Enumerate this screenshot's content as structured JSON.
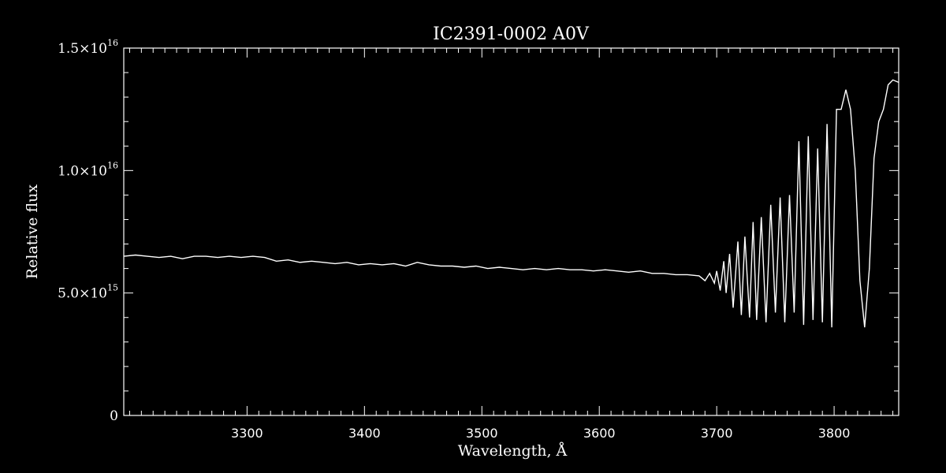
{
  "chart_data": {
    "type": "line",
    "title": "IC2391-0002  A0V",
    "xlabel": "Wavelength, Å",
    "ylabel": "Relative flux",
    "xlim": [
      3195,
      3855
    ],
    "ylim": [
      0,
      1.5e+16
    ],
    "x_major_ticks": [
      3300,
      3400,
      3500,
      3600,
      3700,
      3800
    ],
    "x_tick_labels": [
      "3300",
      "3400",
      "3500",
      "3600",
      "3700",
      "3800"
    ],
    "x_minor_step": 10,
    "y_major_ticks": [
      0,
      5000000000000000.0,
      1e+16,
      1.5e+16
    ],
    "y_tick_labels": [
      {
        "mantissa": "0",
        "exponent": ""
      },
      {
        "mantissa": "5.0×10",
        "exponent": "15"
      },
      {
        "mantissa": "1.0×10",
        "exponent": "16"
      },
      {
        "mantissa": "1.5×10",
        "exponent": "16"
      }
    ],
    "y_minor_step": 1000000000000000.0,
    "grid": false,
    "colors": {
      "background": "#000000",
      "foreground": "#ffffff"
    },
    "series": [
      {
        "x": [
          3195,
          3205,
          3215,
          3225,
          3235,
          3245,
          3255,
          3265,
          3275,
          3285,
          3295,
          3305,
          3315,
          3325,
          3335,
          3345,
          3355,
          3365,
          3375,
          3385,
          3395,
          3405,
          3415,
          3425,
          3435,
          3445,
          3455,
          3465,
          3475,
          3485,
          3495,
          3505,
          3515,
          3525,
          3535,
          3545,
          3555,
          3565,
          3575,
          3585,
          3595,
          3605,
          3615,
          3625,
          3635,
          3645,
          3655,
          3665,
          3675,
          3685,
          3690,
          3694,
          3698,
          3700,
          3703,
          3706,
          3708,
          3711,
          3714,
          3718,
          3721,
          3724,
          3728,
          3731,
          3734,
          3738,
          3742,
          3746,
          3750,
          3754,
          3758,
          3762,
          3766,
          3770,
          3774,
          3778,
          3782,
          3786,
          3790,
          3794,
          3798,
          3802,
          3806,
          3810,
          3814,
          3818,
          3822,
          3826,
          3830,
          3834,
          3838,
          3842,
          3846,
          3850,
          3855
        ],
        "y": [
          6500000000000000.0,
          6550000000000000.0,
          6500000000000000.0,
          6450000000000000.0,
          6500000000000000.0,
          6400000000000000.0,
          6500000000000000.0,
          6500000000000000.0,
          6450000000000000.0,
          6500000000000000.0,
          6450000000000000.0,
          6500000000000000.0,
          6450000000000000.0,
          6300000000000000.0,
          6350000000000000.0,
          6250000000000000.0,
          6300000000000000.0,
          6250000000000000.0,
          6200000000000000.0,
          6250000000000000.0,
          6150000000000000.0,
          6200000000000000.0,
          6150000000000000.0,
          6200000000000000.0,
          6100000000000000.0,
          6250000000000000.0,
          6150000000000000.0,
          6100000000000000.0,
          6100000000000000.0,
          6050000000000000.0,
          6100000000000000.0,
          6000000000000000.0,
          6050000000000000.0,
          6000000000000000.0,
          5950000000000000.0,
          6000000000000000.0,
          5950000000000000.0,
          6000000000000000.0,
          5950000000000000.0,
          5950000000000000.0,
          5900000000000000.0,
          5950000000000000.0,
          5900000000000000.0,
          5850000000000000.0,
          5900000000000000.0,
          5800000000000000.0,
          5800000000000000.0,
          5750000000000000.0,
          5750000000000000.0,
          5700000000000000.0,
          5500000000000000.0,
          5800000000000000.0,
          5400000000000000.0,
          5900000000000000.0,
          5100000000000000.0,
          6300000000000000.0,
          5000000000000000.0,
          6600000000000000.0,
          4400000000000000.0,
          7100000000000000.0,
          4100000000000000.0,
          7300000000000000.0,
          4000000000000000.0,
          7900000000000000.0,
          3900000000000000.0,
          8100000000000000.0,
          3800000000000000.0,
          8600000000000000.0,
          4200000000000000.0,
          8900000000000000.0,
          3800000000000000.0,
          9000000000000000.0,
          4200000000000000.0,
          1.12e+16,
          3700000000000000.0,
          1.14e+16,
          3900000000000000.0,
          1.09e+16,
          3800000000000000.0,
          1.19e+16,
          3600000000000000.0,
          1.25e+16,
          1.25e+16,
          1.33e+16,
          1.25e+16,
          1e+16,
          5500000000000000.0,
          3600000000000000.0,
          6000000000000000.0,
          1.05e+16,
          1.2e+16,
          1.25e+16,
          1.35e+16,
          1.37e+16,
          1.36e+16
        ]
      }
    ]
  }
}
